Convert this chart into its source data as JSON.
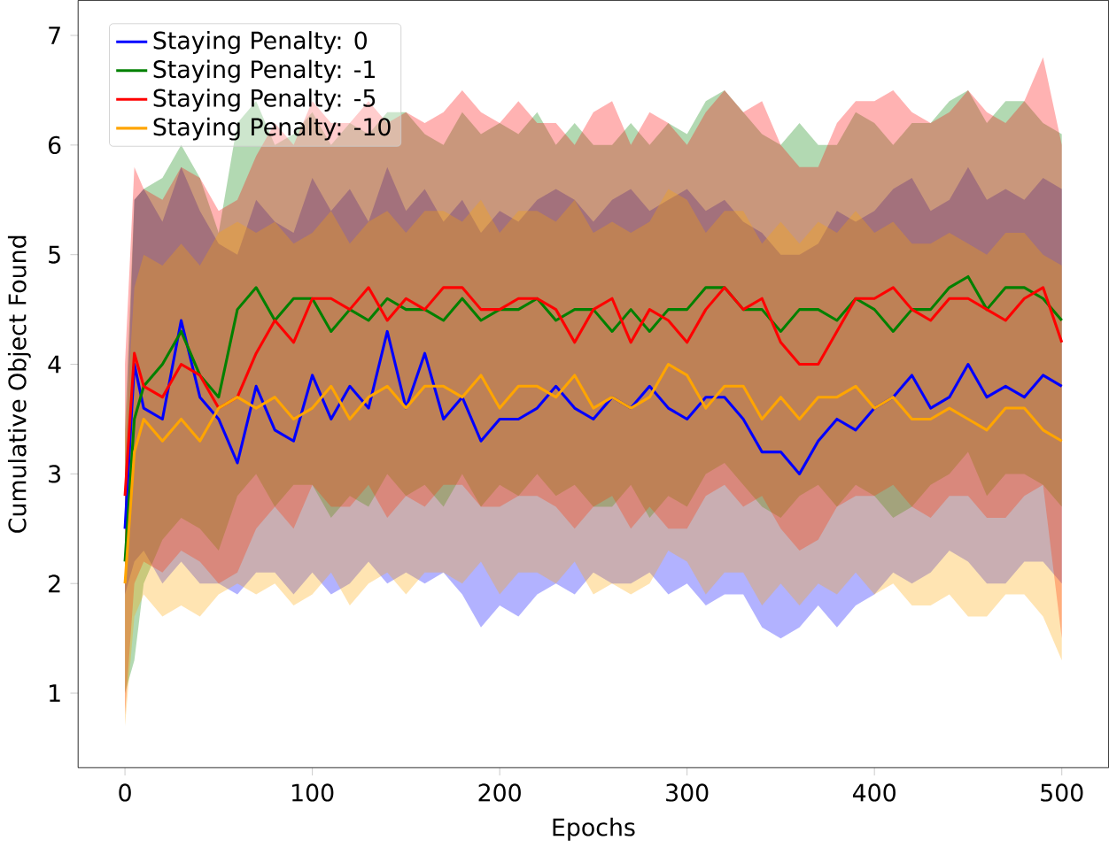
{
  "chart_data": {
    "type": "line",
    "xlabel": "Epochs",
    "ylabel": "Cumulative Object Found",
    "x": [
      0,
      5,
      10,
      20,
      30,
      40,
      50,
      60,
      70,
      80,
      90,
      100,
      110,
      120,
      130,
      140,
      150,
      160,
      170,
      180,
      190,
      200,
      210,
      220,
      230,
      240,
      250,
      260,
      270,
      280,
      290,
      300,
      310,
      320,
      330,
      340,
      350,
      360,
      370,
      380,
      390,
      400,
      410,
      420,
      430,
      440,
      450,
      460,
      470,
      480,
      490,
      500
    ],
    "xlim": [
      -25,
      525
    ],
    "ylim": [
      0.32,
      7.32
    ],
    "xticks": [
      0,
      100,
      200,
      300,
      400,
      500
    ],
    "yticks": [
      1,
      2,
      3,
      4,
      5,
      6,
      7
    ],
    "grid": false,
    "legend": "top left",
    "marker": "none",
    "line_style": "solid",
    "series": [
      {
        "name": "Staying Penalty: 0",
        "color": "#0000ff",
        "values": [
          2.5,
          4.0,
          3.6,
          3.5,
          4.4,
          3.7,
          3.5,
          3.1,
          3.8,
          3.4,
          3.3,
          3.9,
          3.5,
          3.8,
          3.6,
          4.3,
          3.6,
          4.1,
          3.5,
          3.7,
          3.3,
          3.5,
          3.5,
          3.6,
          3.8,
          3.6,
          3.5,
          3.7,
          3.6,
          3.8,
          3.6,
          3.5,
          3.7,
          3.7,
          3.5,
          3.2,
          3.2,
          3.0,
          3.3,
          3.5,
          3.4,
          3.6,
          3.7,
          3.9,
          3.6,
          3.7,
          4.0,
          3.7,
          3.8,
          3.7,
          3.9,
          3.8
        ],
        "lower": [
          1.9,
          2.2,
          2.3,
          2.0,
          2.2,
          2.0,
          2.0,
          1.9,
          2.1,
          2.1,
          1.9,
          2.1,
          1.9,
          2.0,
          2.2,
          2.0,
          2.1,
          2.0,
          2.1,
          1.9,
          1.6,
          1.8,
          1.7,
          1.9,
          2.0,
          1.9,
          2.1,
          2.0,
          2.0,
          2.1,
          1.9,
          2.0,
          1.8,
          1.9,
          1.9,
          1.6,
          1.5,
          1.6,
          1.8,
          1.6,
          1.8,
          1.9,
          2.1,
          2.0,
          2.1,
          2.3,
          2.2,
          2.0,
          2.0,
          2.2,
          2.2,
          2.0
        ],
        "upper": [
          3.0,
          5.5,
          5.6,
          5.3,
          5.8,
          5.4,
          5.1,
          5.0,
          5.5,
          5.3,
          5.2,
          5.7,
          5.4,
          5.6,
          5.3,
          5.8,
          5.4,
          5.6,
          5.3,
          5.5,
          5.2,
          5.4,
          5.3,
          5.5,
          5.6,
          5.5,
          5.3,
          5.5,
          5.6,
          5.4,
          5.5,
          5.6,
          5.4,
          5.5,
          5.3,
          5.2,
          5.0,
          5.0,
          5.1,
          5.4,
          5.3,
          5.4,
          5.6,
          5.7,
          5.4,
          5.5,
          5.8,
          5.5,
          5.6,
          5.5,
          5.7,
          5.6
        ]
      },
      {
        "name": "Staying Penalty: -1",
        "color": "#008000",
        "values": [
          2.2,
          3.5,
          3.8,
          4.0,
          4.3,
          3.9,
          3.7,
          4.5,
          4.7,
          4.4,
          4.6,
          4.6,
          4.3,
          4.5,
          4.4,
          4.6,
          4.5,
          4.5,
          4.4,
          4.6,
          4.4,
          4.5,
          4.5,
          4.6,
          4.4,
          4.5,
          4.5,
          4.3,
          4.5,
          4.3,
          4.5,
          4.5,
          4.7,
          4.7,
          4.5,
          4.5,
          4.3,
          4.5,
          4.5,
          4.4,
          4.6,
          4.5,
          4.3,
          4.5,
          4.5,
          4.7,
          4.8,
          4.5,
          4.7,
          4.7,
          4.6,
          4.4
        ],
        "lower": [
          1.0,
          1.3,
          2.0,
          2.4,
          2.6,
          2.5,
          2.3,
          2.8,
          3.0,
          2.7,
          2.9,
          2.9,
          2.6,
          2.8,
          2.7,
          3.0,
          2.8,
          2.9,
          2.7,
          3.0,
          2.7,
          2.9,
          2.8,
          3.0,
          2.8,
          2.9,
          2.7,
          2.7,
          2.9,
          2.6,
          2.8,
          2.7,
          3.0,
          3.1,
          2.9,
          2.7,
          2.6,
          2.8,
          2.9,
          2.7,
          2.9,
          2.8,
          2.6,
          2.7,
          2.9,
          3.0,
          3.2,
          2.8,
          3.0,
          3.0,
          2.9,
          2.7
        ],
        "upper": [
          3.4,
          5.5,
          5.6,
          5.7,
          6.0,
          5.7,
          5.2,
          6.2,
          6.4,
          6.0,
          6.1,
          6.3,
          6.0,
          6.2,
          6.1,
          6.3,
          6.3,
          6.1,
          6.0,
          6.3,
          6.1,
          6.2,
          6.1,
          6.3,
          6.0,
          6.2,
          6.0,
          6.0,
          6.2,
          6.0,
          6.2,
          6.1,
          6.4,
          6.5,
          6.3,
          6.1,
          6.0,
          6.2,
          6.0,
          6.0,
          6.3,
          6.2,
          6.0,
          6.2,
          6.2,
          6.4,
          6.5,
          6.2,
          6.4,
          6.4,
          6.2,
          6.1
        ]
      },
      {
        "name": "Staying Penalty: -5",
        "color": "#ff0000",
        "values": [
          2.8,
          4.1,
          3.8,
          3.7,
          4.0,
          3.9,
          3.6,
          3.7,
          4.1,
          4.4,
          4.2,
          4.6,
          4.6,
          4.5,
          4.7,
          4.4,
          4.6,
          4.5,
          4.7,
          4.7,
          4.5,
          4.5,
          4.6,
          4.6,
          4.5,
          4.2,
          4.5,
          4.6,
          4.2,
          4.5,
          4.4,
          4.2,
          4.5,
          4.7,
          4.5,
          4.6,
          4.2,
          4.0,
          4.0,
          4.3,
          4.6,
          4.6,
          4.7,
          4.5,
          4.4,
          4.6,
          4.6,
          4.5,
          4.4,
          4.6,
          4.7,
          4.2
        ],
        "lower": [
          0.8,
          2.0,
          2.2,
          2.1,
          2.3,
          2.2,
          2.0,
          2.1,
          2.5,
          2.7,
          2.5,
          2.9,
          2.7,
          2.7,
          2.9,
          2.6,
          2.8,
          2.7,
          2.9,
          2.9,
          2.7,
          2.7,
          2.8,
          2.8,
          2.7,
          2.5,
          2.7,
          2.8,
          2.5,
          2.7,
          2.5,
          2.5,
          2.8,
          2.9,
          2.7,
          2.8,
          2.5,
          2.3,
          2.4,
          2.7,
          2.8,
          2.8,
          2.9,
          2.7,
          2.6,
          2.8,
          2.8,
          2.6,
          2.6,
          2.8,
          2.9,
          1.5
        ],
        "upper": [
          4.0,
          5.8,
          5.6,
          5.5,
          5.8,
          5.7,
          5.4,
          5.5,
          5.9,
          6.2,
          6.0,
          6.4,
          6.2,
          6.2,
          6.4,
          6.2,
          6.3,
          6.2,
          6.3,
          6.5,
          6.3,
          6.2,
          6.4,
          6.2,
          6.2,
          6.0,
          6.3,
          6.4,
          6.0,
          6.3,
          6.2,
          6.0,
          6.3,
          6.5,
          6.3,
          6.4,
          6.0,
          5.8,
          5.8,
          6.2,
          6.4,
          6.4,
          6.5,
          6.3,
          6.2,
          6.3,
          6.5,
          6.3,
          6.2,
          6.4,
          6.8,
          6.0
        ]
      },
      {
        "name": "Staying Penalty: -10",
        "color": "#ffa500",
        "values": [
          2.0,
          3.2,
          3.5,
          3.3,
          3.5,
          3.3,
          3.6,
          3.7,
          3.6,
          3.7,
          3.5,
          3.6,
          3.8,
          3.5,
          3.7,
          3.8,
          3.6,
          3.8,
          3.8,
          3.7,
          3.9,
          3.6,
          3.8,
          3.8,
          3.7,
          3.9,
          3.6,
          3.7,
          3.6,
          3.7,
          4.0,
          3.9,
          3.6,
          3.8,
          3.8,
          3.5,
          3.7,
          3.5,
          3.7,
          3.7,
          3.8,
          3.6,
          3.7,
          3.5,
          3.5,
          3.6,
          3.5,
          3.4,
          3.6,
          3.6,
          3.4,
          3.3
        ],
        "lower": [
          0.7,
          1.7,
          1.9,
          1.7,
          1.8,
          1.7,
          1.9,
          2.0,
          1.9,
          2.0,
          1.8,
          1.9,
          2.1,
          1.8,
          2.0,
          2.1,
          1.9,
          2.1,
          2.1,
          2.0,
          2.2,
          1.9,
          2.1,
          2.1,
          2.0,
          2.2,
          1.9,
          2.0,
          1.9,
          2.0,
          2.3,
          2.2,
          1.9,
          2.1,
          2.1,
          1.8,
          2.0,
          1.8,
          2.0,
          1.9,
          2.1,
          1.9,
          2.0,
          1.8,
          1.8,
          1.9,
          1.7,
          1.7,
          1.9,
          1.9,
          1.7,
          1.3
        ],
        "upper": [
          3.3,
          4.7,
          5.0,
          4.9,
          5.1,
          4.9,
          5.2,
          5.3,
          5.2,
          5.3,
          5.1,
          5.2,
          5.4,
          5.1,
          5.3,
          5.4,
          5.2,
          5.4,
          5.4,
          5.3,
          5.5,
          5.2,
          5.4,
          5.4,
          5.3,
          5.5,
          5.2,
          5.3,
          5.2,
          5.3,
          5.6,
          5.5,
          5.2,
          5.4,
          5.4,
          5.1,
          5.3,
          5.1,
          5.3,
          5.2,
          5.4,
          5.2,
          5.3,
          5.1,
          5.1,
          5.2,
          5.1,
          5.0,
          5.2,
          5.2,
          5.0,
          4.9
        ]
      }
    ]
  }
}
